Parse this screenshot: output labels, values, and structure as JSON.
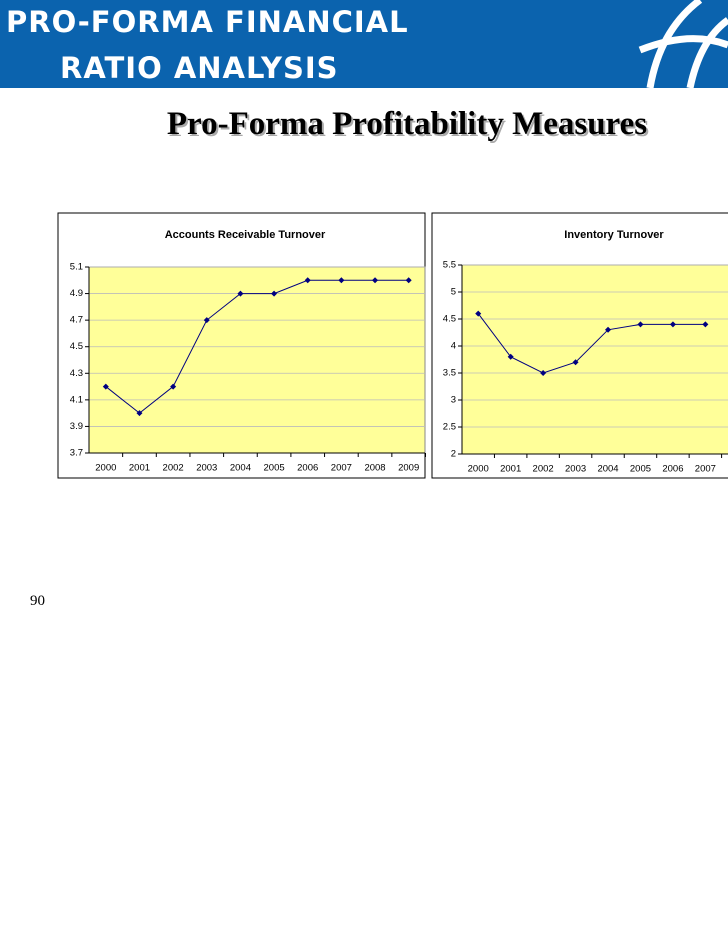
{
  "header": {
    "title_lines": [
      "PRO-FORMA FINANCIAL",
      "RATIO ANALYSIS"
    ]
  },
  "slide_title": "Pro-Forma Profitability Measures",
  "page_number": "90",
  "chart_data": [
    {
      "type": "line",
      "title": "Accounts Receivable Turnover",
      "categories": [
        "2000",
        "2001",
        "2002",
        "2003",
        "2004",
        "2005",
        "2006",
        "2007",
        "2008",
        "2009"
      ],
      "values": [
        4.2,
        4.0,
        4.2,
        4.7,
        4.9,
        4.9,
        5.0,
        5.0,
        5.0,
        5.0
      ],
      "color": "#000080",
      "ylim": [
        3.7,
        5.1
      ],
      "yticks": [
        3.7,
        3.9,
        4.1,
        4.3,
        4.5,
        4.7,
        4.9,
        5.1
      ],
      "grid": true
    },
    {
      "type": "line",
      "title": "Inventory Turnover",
      "categories": [
        "2000",
        "2001",
        "2002",
        "2003",
        "2004",
        "2005",
        "2006",
        "2007"
      ],
      "values": [
        4.6,
        3.8,
        3.5,
        3.7,
        4.3,
        4.4,
        4.4,
        4.4
      ],
      "color": "#000080",
      "ylim": [
        2,
        5.5
      ],
      "yticks": [
        2,
        2.5,
        3,
        3.5,
        4,
        4.5,
        5,
        5.5
      ],
      "grid": true
    }
  ]
}
